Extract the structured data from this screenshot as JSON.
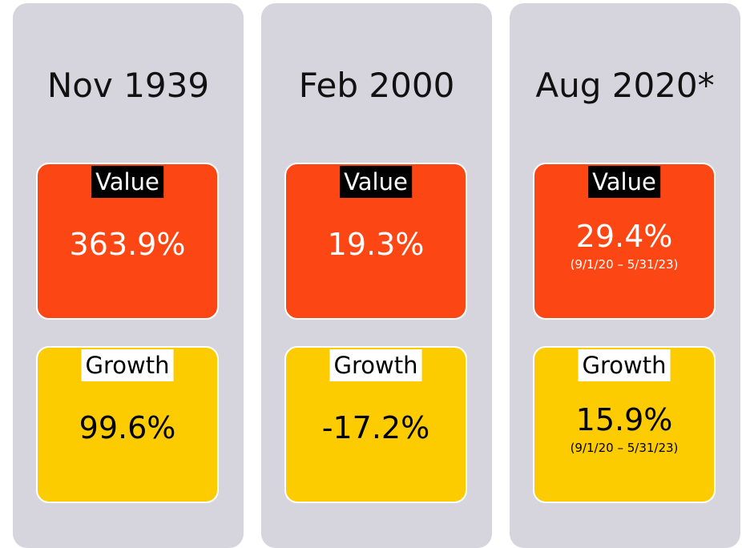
{
  "columns": [
    {
      "title": "Nov 1939",
      "value": {
        "label": "Value",
        "amount": "363.9%"
      },
      "growth": {
        "label": "Growth",
        "amount": "99.6%"
      }
    },
    {
      "title": "Feb 2000",
      "value": {
        "label": "Value",
        "amount": "19.3%"
      },
      "growth": {
        "label": "Growth",
        "amount": "-17.2%"
      }
    },
    {
      "title": "Aug 2020*",
      "value": {
        "label": "Value",
        "amount": "29.4%",
        "note": "(9/1/20 – 5/31/23)"
      },
      "growth": {
        "label": "Growth",
        "amount": "15.9%",
        "note": "(9/1/20 – 5/31/23)"
      }
    }
  ]
}
